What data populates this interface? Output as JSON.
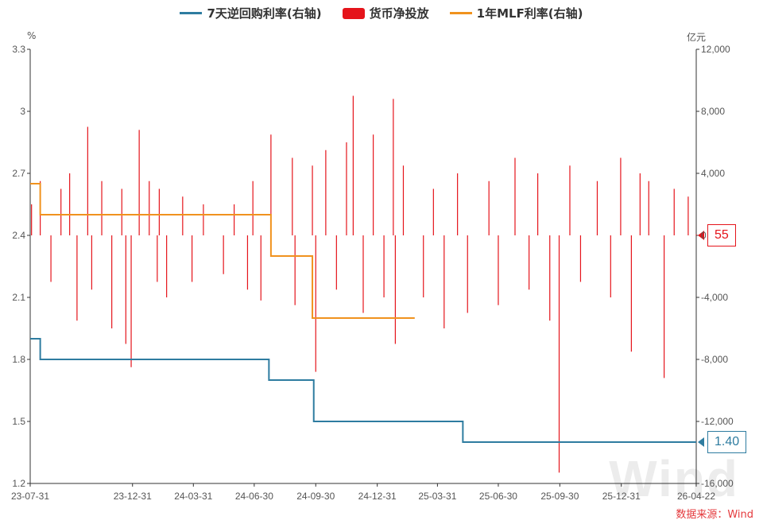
{
  "legend": {
    "items": [
      {
        "label": "7天逆回购利率(右轴)",
        "kind": "line",
        "color": "#2e7ca0"
      },
      {
        "label": "货币净投放",
        "kind": "bar",
        "color": "#e5141b"
      },
      {
        "label": "1年MLF利率(右轴)",
        "kind": "line",
        "color": "#f0921e"
      }
    ]
  },
  "units": {
    "left": "%",
    "right": "亿元"
  },
  "source": "数据来源：Wind",
  "watermark": "Wind",
  "tags": {
    "net_injection": "55",
    "repo_rate": "1.40"
  },
  "chart_data": {
    "type": "bar+line",
    "x_ticks": [
      "23-07-31",
      "23-12-31",
      "24-03-31",
      "24-06-30",
      "24-09-30",
      "24-12-31",
      "25-03-31",
      "25-06-30",
      "25-09-30",
      "25-12-31",
      "26-04-22"
    ],
    "x_range": [
      "2023-07-31",
      "2026-04-22"
    ],
    "left_axis": {
      "unit": "%",
      "range": [
        1.2,
        3.3
      ],
      "ticks": [
        1.2,
        1.5,
        1.8,
        2.1,
        2.4,
        2.7,
        3.0,
        3.3
      ],
      "tick_labels": [
        "1.2",
        "1.5",
        "1.8",
        "2.1",
        "2.4",
        "2.7",
        "3",
        "3.3"
      ]
    },
    "right_axis": {
      "unit": "亿元",
      "range": [
        -16000,
        12000
      ],
      "ticks": [
        -16000,
        -12000,
        -8000,
        -4000,
        0,
        4000,
        8000,
        12000
      ],
      "tick_labels": [
        "-16,000",
        "-12,000",
        "-8,000",
        "-4,000",
        "0",
        "4,000",
        "8,000",
        "12,000"
      ]
    },
    "series": [
      {
        "name": "7天逆回购利率(右轴)",
        "kind": "step-line",
        "axis": "left",
        "color": "#2e7ca0",
        "points": [
          [
            "2023-07-31",
            1.9
          ],
          [
            "2023-08-15",
            1.8
          ],
          [
            "2024-07-22",
            1.7
          ],
          [
            "2024-09-27",
            1.5
          ],
          [
            "2025-05-08",
            1.4
          ],
          [
            "2026-04-22",
            1.4
          ]
        ]
      },
      {
        "name": "1年MLF利率(右轴)",
        "kind": "step-line",
        "axis": "left",
        "color": "#f0921e",
        "points": [
          [
            "2023-07-31",
            2.65
          ],
          [
            "2023-08-15",
            2.5
          ],
          [
            "2024-07-25",
            2.3
          ],
          [
            "2024-09-25",
            2.0
          ],
          [
            "2025-02-25",
            2.0
          ]
        ]
      },
      {
        "name": "货币净投放",
        "kind": "bar",
        "axis": "right",
        "color": "#e5141b",
        "note": "daily net injection; approximate values read from chart",
        "points": [
          [
            "2023-08-02",
            2000
          ],
          [
            "2023-08-15",
            3500
          ],
          [
            "2023-08-31",
            -3000
          ],
          [
            "2023-09-15",
            3000
          ],
          [
            "2023-09-28",
            4000
          ],
          [
            "2023-10-09",
            -5500
          ],
          [
            "2023-10-25",
            7000
          ],
          [
            "2023-10-31",
            -3500
          ],
          [
            "2023-11-15",
            3500
          ],
          [
            "2023-11-30",
            -6000
          ],
          [
            "2023-12-15",
            3000
          ],
          [
            "2023-12-21",
            -7000
          ],
          [
            "2023-12-29",
            -8500
          ],
          [
            "2024-01-10",
            6800
          ],
          [
            "2024-01-25",
            3500
          ],
          [
            "2024-02-06",
            -3000
          ],
          [
            "2024-02-09",
            3000
          ],
          [
            "2024-02-20",
            -4000
          ],
          [
            "2024-03-15",
            2500
          ],
          [
            "2024-03-29",
            -3000
          ],
          [
            "2024-04-15",
            2000
          ],
          [
            "2024-05-15",
            -2500
          ],
          [
            "2024-05-31",
            2000
          ],
          [
            "2024-06-20",
            -3500
          ],
          [
            "2024-06-28",
            3500
          ],
          [
            "2024-07-10",
            -4200
          ],
          [
            "2024-07-25",
            6500
          ],
          [
            "2024-08-26",
            5000
          ],
          [
            "2024-08-30",
            -4500
          ],
          [
            "2024-09-25",
            4500
          ],
          [
            "2024-09-30",
            -8800
          ],
          [
            "2024-10-15",
            5500
          ],
          [
            "2024-10-31",
            -3500
          ],
          [
            "2024-11-15",
            6000
          ],
          [
            "2024-11-25",
            9000
          ],
          [
            "2024-12-10",
            -5000
          ],
          [
            "2024-12-25",
            6500
          ],
          [
            "2025-01-10",
            -4000
          ],
          [
            "2025-01-24",
            8800
          ],
          [
            "2025-01-27",
            -7000
          ],
          [
            "2025-02-08",
            4500
          ],
          [
            "2025-03-10",
            -4000
          ],
          [
            "2025-03-25",
            3000
          ],
          [
            "2025-04-10",
            -6000
          ],
          [
            "2025-04-30",
            4000
          ],
          [
            "2025-05-15",
            -5000
          ],
          [
            "2025-06-16",
            3500
          ],
          [
            "2025-06-30",
            -4500
          ],
          [
            "2025-07-25",
            5000
          ],
          [
            "2025-08-15",
            -3500
          ],
          [
            "2025-08-28",
            4000
          ],
          [
            "2025-09-15",
            -5500
          ],
          [
            "2025-09-29",
            -15300
          ],
          [
            "2025-10-15",
            4500
          ],
          [
            "2025-10-31",
            -3000
          ],
          [
            "2025-11-25",
            3500
          ],
          [
            "2025-12-15",
            -4000
          ],
          [
            "2025-12-30",
            5000
          ],
          [
            "2026-01-15",
            -7500
          ],
          [
            "2026-01-28",
            4000
          ],
          [
            "2026-02-10",
            3500
          ],
          [
            "2026-03-05",
            -9200
          ],
          [
            "2026-03-20",
            3000
          ],
          [
            "2026-04-10",
            2500
          ],
          [
            "2026-04-22",
            55
          ]
        ]
      }
    ],
    "grid": false,
    "legend_position": "top-center"
  }
}
